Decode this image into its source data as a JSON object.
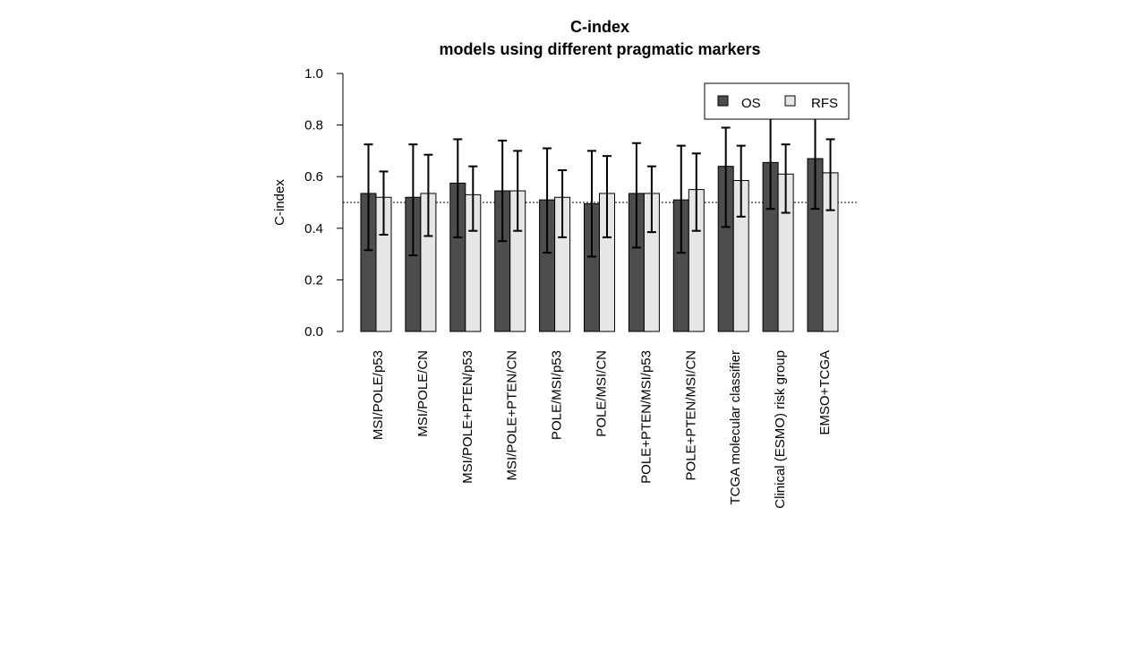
{
  "chart_data": {
    "type": "bar",
    "title": "C-index",
    "subtitle": "models using different pragmatic markers",
    "xlabel": "",
    "ylabel": "C-index",
    "ylim": [
      0,
      1
    ],
    "yticks": [
      "0.0",
      "0.2",
      "0.4",
      "0.6",
      "0.8",
      "1.0"
    ],
    "reference_line": 0.5,
    "grid": false,
    "legend_position": "top-right",
    "categories": [
      "MSI/POLE/p53",
      "MSI/POLE/CN",
      "MSI/POLE+PTEN/p53",
      "MSI/POLE+PTEN/CN",
      "POLE/MSI/p53",
      "POLE/MSI/CN",
      "POLE+PTEN/MSI/p53",
      "POLE+PTEN/MSI/CN",
      "TCGA molecular classifier",
      "Clinical (ESMO) risk group",
      "EMSO+TCGA"
    ],
    "series": [
      {
        "name": "OS",
        "color": "#4d4d4d",
        "values": [
          0.535,
          0.52,
          0.575,
          0.545,
          0.51,
          0.495,
          0.535,
          0.51,
          0.64,
          0.655,
          0.67
        ],
        "lower": [
          0.315,
          0.295,
          0.365,
          0.35,
          0.305,
          0.29,
          0.325,
          0.305,
          0.405,
          0.475,
          0.475
        ],
        "upper": [
          0.725,
          0.725,
          0.745,
          0.74,
          0.71,
          0.7,
          0.73,
          0.72,
          0.79,
          0.83,
          0.835
        ]
      },
      {
        "name": "RFS",
        "color": "#e6e6e6",
        "values": [
          0.52,
          0.535,
          0.53,
          0.545,
          0.52,
          0.535,
          0.535,
          0.55,
          0.585,
          0.61,
          0.615
        ],
        "lower": [
          0.375,
          0.37,
          0.39,
          0.39,
          0.365,
          0.365,
          0.385,
          0.39,
          0.445,
          0.46,
          0.47
        ],
        "upper": [
          0.62,
          0.685,
          0.64,
          0.7,
          0.625,
          0.68,
          0.64,
          0.69,
          0.72,
          0.725,
          0.745
        ]
      }
    ]
  }
}
